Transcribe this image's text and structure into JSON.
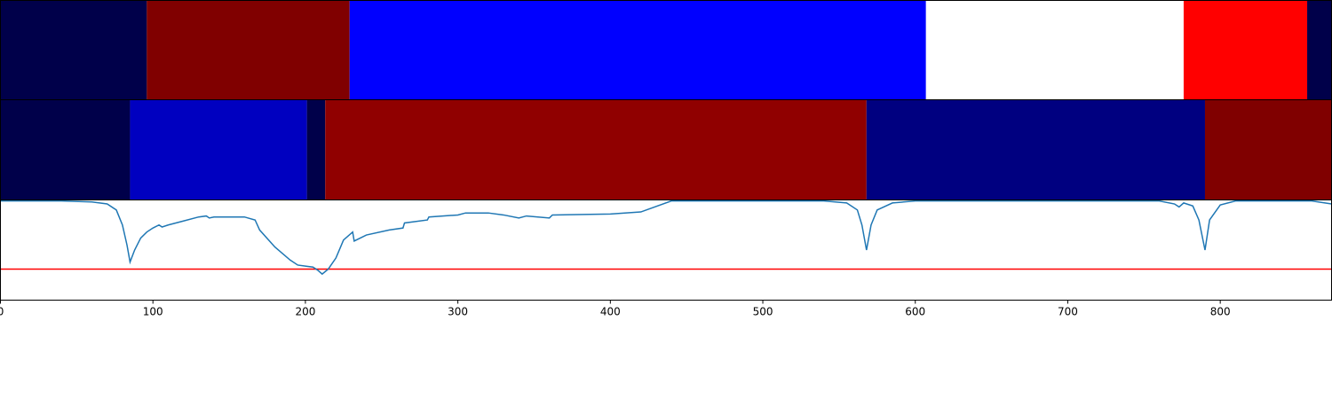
{
  "chart_data": [
    {
      "type": "segments",
      "xlim": [
        0,
        873
      ],
      "segments": [
        {
          "start": 0,
          "end": 96,
          "color": "#00004a"
        },
        {
          "start": 96,
          "end": 229,
          "color": "#800000"
        },
        {
          "start": 229,
          "end": 607,
          "color": "#0000ff"
        },
        {
          "start": 607,
          "end": 776,
          "color": "#ffffff"
        },
        {
          "start": 776,
          "end": 857,
          "color": "#ff0000"
        },
        {
          "start": 857,
          "end": 873,
          "color": "#00004a"
        }
      ]
    },
    {
      "type": "segments",
      "xlim": [
        0,
        873
      ],
      "segments": [
        {
          "start": 0,
          "end": 85,
          "color": "#00004a"
        },
        {
          "start": 85,
          "end": 201,
          "color": "#0000c0"
        },
        {
          "start": 201,
          "end": 213,
          "color": "#00004a"
        },
        {
          "start": 213,
          "end": 568,
          "color": "#900000"
        },
        {
          "start": 568,
          "end": 790,
          "color": "#000080"
        },
        {
          "start": 790,
          "end": 873,
          "color": "#800000"
        }
      ]
    },
    {
      "type": "line",
      "xlim": [
        0,
        873
      ],
      "ylim": [
        0,
        1
      ],
      "xticks": [
        0,
        100,
        200,
        300,
        400,
        500,
        600,
        700,
        800
      ],
      "hline": {
        "value": 0.31,
        "color": "#ff0000"
      },
      "series": [
        {
          "color": "#1f77b4",
          "x": [
            0,
            40,
            60,
            70,
            76,
            80,
            83,
            85,
            88,
            92,
            96,
            100,
            104,
            106,
            110,
            120,
            130,
            135,
            137,
            140,
            160,
            167,
            170,
            180,
            190,
            195,
            200,
            205,
            208,
            211,
            215,
            220,
            225,
            231,
            232,
            240,
            255,
            264,
            265,
            280,
            281,
            300,
            305,
            320,
            330,
            340,
            345,
            360,
            362,
            400,
            420,
            440,
            540,
            555,
            562,
            565,
            568,
            571,
            575,
            585,
            600,
            760,
            770,
            773,
            776,
            782,
            786,
            790,
            793,
            800,
            810,
            860,
            873
          ],
          "values": [
            0.99,
            0.99,
            0.98,
            0.96,
            0.9,
            0.75,
            0.55,
            0.38,
            0.5,
            0.62,
            0.68,
            0.72,
            0.75,
            0.73,
            0.75,
            0.79,
            0.83,
            0.84,
            0.82,
            0.83,
            0.83,
            0.8,
            0.7,
            0.53,
            0.4,
            0.35,
            0.34,
            0.33,
            0.3,
            0.26,
            0.31,
            0.42,
            0.6,
            0.68,
            0.59,
            0.65,
            0.7,
            0.72,
            0.77,
            0.8,
            0.83,
            0.85,
            0.87,
            0.87,
            0.85,
            0.82,
            0.84,
            0.82,
            0.85,
            0.86,
            0.88,
            0.99,
            0.99,
            0.97,
            0.9,
            0.75,
            0.5,
            0.75,
            0.9,
            0.97,
            0.99,
            0.99,
            0.96,
            0.93,
            0.97,
            0.94,
            0.8,
            0.5,
            0.8,
            0.95,
            0.99,
            0.99,
            0.96
          ]
        }
      ]
    }
  ]
}
